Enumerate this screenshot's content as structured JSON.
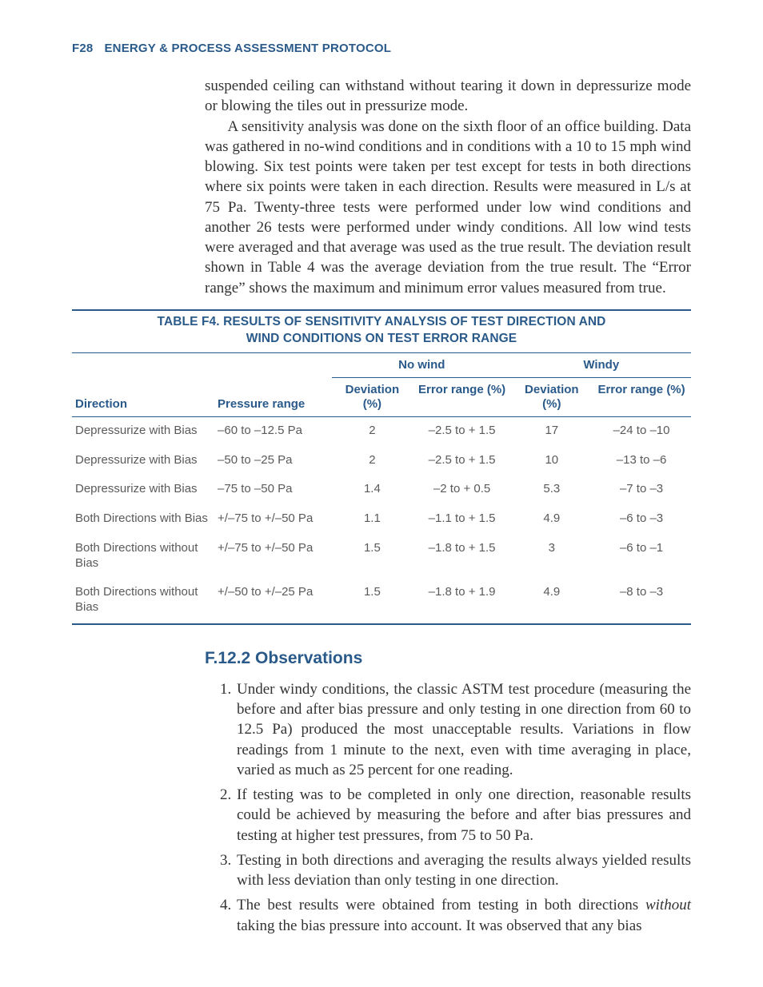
{
  "running_head": {
    "page_num": "F28",
    "title": "ENERGY & PROCESS ASSESSMENT PROTOCOL"
  },
  "colors": {
    "blue": "#2a5a8a",
    "ink": "#333333",
    "table_ink": "#5a5a5a",
    "rule": "#2a5a8a",
    "background": "#ffffff"
  },
  "typography": {
    "body_font": "Adobe Caslon Pro / Garamond serif",
    "body_size_pt": 14,
    "body_line_height": 1.33,
    "sans_font": "Myriad Pro / Segoe UI",
    "table_size_pt": 11,
    "section_head_size_pt": 16,
    "running_head_size_pt": 11
  },
  "paragraphs": {
    "p1": "suspended ceiling can withstand without tearing it down in depressurize mode or blowing the tiles out in pressurize mode.",
    "p2": "A sensitivity analysis was done on the sixth floor of an office building. Data was gathered in no-wind conditions and in conditions with a 10 to 15 mph wind blowing. Six test points were taken per test except for tests in both directions where six points were taken in each direction. Results were measured in L/s at 75 Pa. Twenty-three tests were performed under low wind conditions and another 26 tests were performed under windy conditions. All low wind tests were averaged and that average was used as the true result. The deviation result shown in Table 4 was the average deviation from the true result. The “Error range” shows the maximum and minimum error values measured from true."
  },
  "table": {
    "type": "table",
    "caption_line1": "TABLE F4. RESULTS OF SENSITIVITY ANALYSIS OF TEST DIRECTION AND",
    "caption_line2": "WIND CONDITIONS ON TEST ERROR RANGE",
    "headers": {
      "direction": "Direction",
      "pressure_range": "Pressure range",
      "group_nowind": "No wind",
      "group_windy": "Windy",
      "deviation": "Deviation (%)",
      "error_range": "Error range (%)"
    },
    "column_widths_pct": [
      23,
      19,
      13,
      16,
      13,
      16
    ],
    "rows": [
      {
        "direction": "Depressurize with Bias",
        "pressure_range": "–60 to –12.5 Pa",
        "nowind_dev": "2",
        "nowind_err": "–2.5 to + 1.5",
        "windy_dev": "17",
        "windy_err": "–24 to –10"
      },
      {
        "direction": "Depressurize with Bias",
        "pressure_range": "–50 to –25 Pa",
        "nowind_dev": "2",
        "nowind_err": "–2.5 to + 1.5",
        "windy_dev": "10",
        "windy_err": "–13 to –6"
      },
      {
        "direction": "Depressurize with Bias",
        "pressure_range": "–75 to –50 Pa",
        "nowind_dev": "1.4",
        "nowind_err": "–2 to + 0.5",
        "windy_dev": "5.3",
        "windy_err": "–7 to –3"
      },
      {
        "direction": "Both Directions with Bias",
        "pressure_range": "+/–75 to +/–50 Pa",
        "nowind_dev": "1.1",
        "nowind_err": "–1.1 to + 1.5",
        "windy_dev": "4.9",
        "windy_err": "–6 to –3"
      },
      {
        "direction": "Both Directions without Bias",
        "pressure_range": "+/–75 to +/–50 Pa",
        "nowind_dev": "1.5",
        "nowind_err": "–1.8 to + 1.5",
        "windy_dev": "3",
        "windy_err": "–6 to –1"
      },
      {
        "direction": "Both Directions without Bias",
        "pressure_range": "+/–50 to +/–25 Pa",
        "nowind_dev": "1.5",
        "nowind_err": "–1.8 to + 1.9",
        "windy_dev": "4.9",
        "windy_err": "–8 to –3"
      }
    ]
  },
  "section_head": "F.12.2 Observations",
  "observations": {
    "o1": "Under windy conditions, the classic ASTM test procedure (measuring the before and after bias pressure and only testing in one direction from 60 to 12.5 Pa) produced the most unacceptable results. Variations in flow readings from 1 minute to the next, even with time averaging in place, varied as much as 25 percent for one reading.",
    "o2": "If testing was to be completed in only one direction, reasonable results could be achieved by measuring the before and after bias pressures and testing at higher test pressures, from 75 to 50 Pa.",
    "o3": "Testing in both directions and averaging the results always yielded results with less deviation than only testing in one direction.",
    "o4_pre": "The best results were obtained from testing in both directions ",
    "o4_em": "without",
    "o4_post": " taking the bias pressure into account. It was observed that any bias"
  }
}
